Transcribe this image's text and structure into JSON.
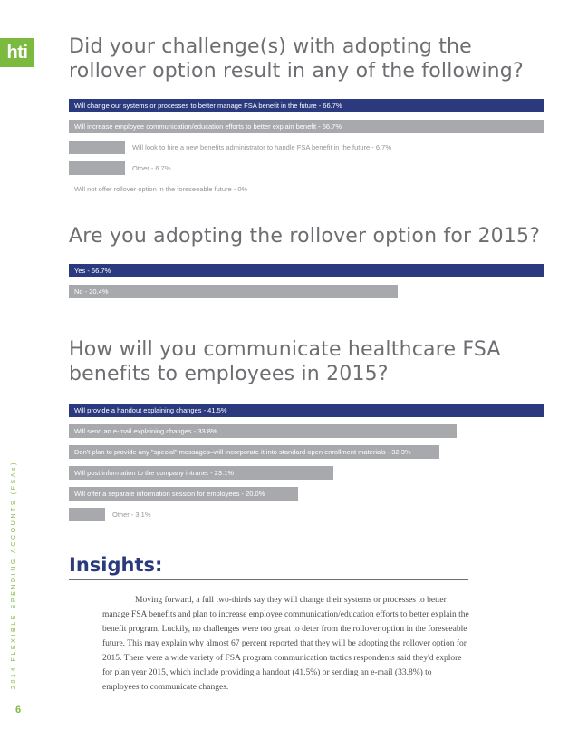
{
  "logo": {
    "text": "hti"
  },
  "side_label": "2014 FLEXIBLE SPENDING ACCOUNTS (FSAs)",
  "page_number": "6",
  "sections": [
    {
      "heading_line1": "Did your challenge(s) with adopting the",
      "heading_line2": "rollover option result in any of the following?",
      "chart_data": {
        "type": "bar",
        "orientation": "horizontal",
        "categories": [
          "Will change our systems or processes to better manage FSA benefit in the future",
          "Will increase employee communication/education efforts to better explain benefit",
          "Will look to hire a new benefits administrator to handle FSA benefit in the future",
          "Other",
          "Will not offer rollover option in the foreseeable future"
        ],
        "values": [
          66.7,
          66.7,
          6.7,
          6.7,
          0
        ],
        "labels": [
          "Will change our systems or processes to better manage FSA benefit in the future - 66.7%",
          "Will increase employee communication/education efforts to better explain benefit - 66.7%",
          "Will look to hire a new benefits administrator to handle FSA benefit in the future - 6.7%",
          "Other - 6.7%",
          "Will not offer rollover option in the foreseeable future - 0%"
        ],
        "colors": [
          "#2b3a7e",
          "#a7a9ac",
          "#a7a9ac",
          "#a7a9ac",
          "#a7a9ac"
        ],
        "xlim": [
          0,
          66.7
        ]
      }
    },
    {
      "heading_line1": "Are you adopting the rollover option for 2015?",
      "heading_line2": "",
      "chart_data": {
        "type": "bar",
        "orientation": "horizontal",
        "categories": [
          "Yes",
          "No"
        ],
        "values": [
          66.7,
          20.4
        ],
        "labels": [
          "Yes - 66.7%",
          "No - 20.4%"
        ],
        "colors": [
          "#2b3a7e",
          "#a7a9ac"
        ],
        "xlim": [
          0,
          66.7
        ],
        "note": "bars are drawn scaled relative to the largest value in the original; the No bar is visually longer than proportional"
      }
    },
    {
      "heading_line1": "How will you communicate healthcare FSA",
      "heading_line2": "benefits to employees in 2015?",
      "chart_data": {
        "type": "bar",
        "orientation": "horizontal",
        "categories": [
          "Will provide a handout explaining changes",
          "Will send an e-mail explaining changes",
          "Don't plan to provide any \"special\" messages–will incorporate it into standard open enrollment materials",
          "Will post information to the company intranet",
          "Will offer a separate information session for employees",
          "Other"
        ],
        "values": [
          41.5,
          33.8,
          32.3,
          23.1,
          20.0,
          3.1
        ],
        "labels": [
          "Will provide a handout explaining changes - 41.5%",
          "Will send an e-mail explaining changes - 33.8%",
          "Don't plan to provide any \"special\" messages–will incorporate it into standard open enrollment materials - 32.3%",
          "Will post information to the company intranet - 23.1%",
          "Will offer a separate information session for employees - 20.0%",
          "Other - 3.1%"
        ],
        "colors": [
          "#2b3a7e",
          "#a7a9ac",
          "#a7a9ac",
          "#a7a9ac",
          "#a7a9ac",
          "#a7a9ac"
        ],
        "xlim": [
          0,
          41.5
        ]
      }
    }
  ],
  "insights": {
    "title": "Insights:",
    "body": "Moving forward, a full two-thirds say they will change their systems or processes to better manage FSA benefits and plan to increase employee communication/education efforts to better explain the benefit program. Luckily, no challenges were too great to deter from the rollover option in the foreseeable future. This may explain why almost 67 percent reported that they will be adopting the rollover option for 2015. There were a wide variety of FSA program communication tactics respondents said they'd explore for plan year 2015, which include providing a handout (41.5%) or sending an e-mail (33.8%) to employees to communicate changes."
  }
}
